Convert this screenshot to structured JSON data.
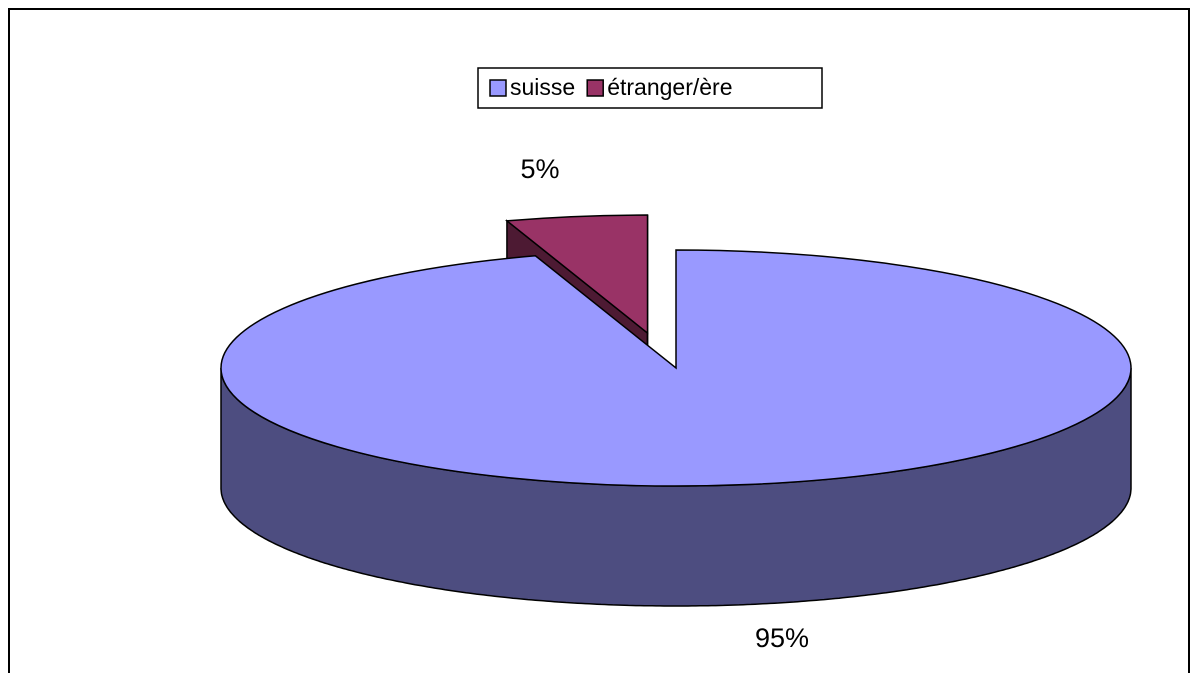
{
  "chart_data": {
    "type": "pie3d",
    "categories": [
      "suisse",
      "étranger/ère"
    ],
    "values": [
      95,
      5
    ],
    "value_labels": [
      "95%",
      "5%"
    ],
    "colors": [
      "#9999ff",
      "#993366"
    ],
    "legend": "top"
  }
}
